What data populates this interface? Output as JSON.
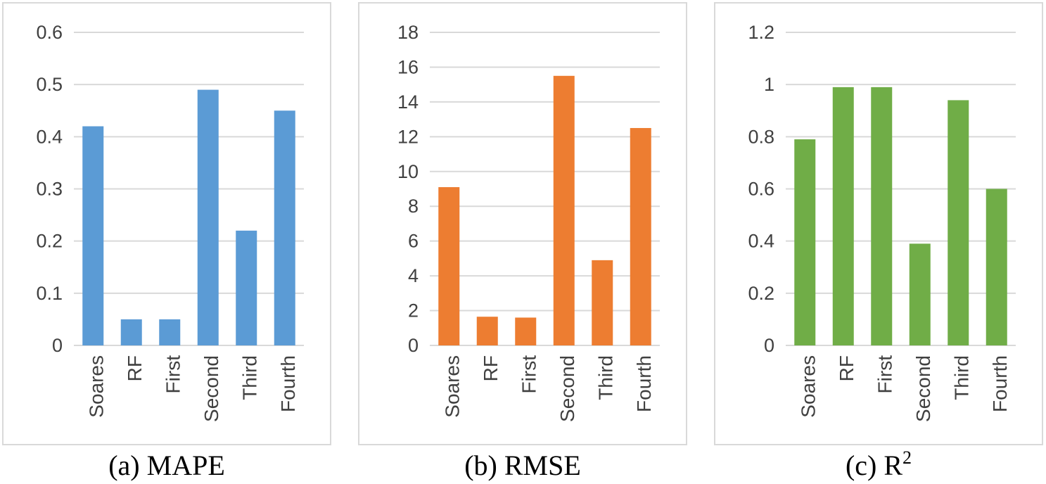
{
  "figure": {
    "background": "#ffffff",
    "panel_border_color": "#d9d9d9",
    "gridline_color": "#d9d9d9",
    "tick_label_color": "#404040",
    "category_label_color": "#404040",
    "caption_color": "#000000"
  },
  "chart_data": [
    {
      "id": "mape",
      "type": "bar",
      "caption": "(a) MAPE",
      "caption_sup": "",
      "categories": [
        "Soares",
        "RF",
        "First",
        "Second",
        "Third",
        "Fourth"
      ],
      "values": [
        0.42,
        0.05,
        0.05,
        0.49,
        0.22,
        0.45
      ],
      "bar_color": "#5B9BD5",
      "ylim": [
        0,
        0.6
      ],
      "ystep": 0.1,
      "yticks": [
        "0",
        "0.1",
        "0.2",
        "0.3",
        "0.4",
        "0.5",
        "0.6"
      ],
      "grid": true,
      "legend": "none"
    },
    {
      "id": "rmse",
      "type": "bar",
      "caption": "(b) RMSE",
      "caption_sup": "",
      "categories": [
        "Soares",
        "RF",
        "First",
        "Second",
        "Third",
        "Fourth"
      ],
      "values": [
        9.1,
        1.65,
        1.6,
        15.5,
        4.9,
        12.5
      ],
      "bar_color": "#ED7D31",
      "ylim": [
        0,
        18
      ],
      "ystep": 2,
      "yticks": [
        "0",
        "2",
        "4",
        "6",
        "8",
        "10",
        "12",
        "14",
        "16",
        "18"
      ],
      "grid": true,
      "legend": "none"
    },
    {
      "id": "r2",
      "type": "bar",
      "caption": "(c) R",
      "caption_sup": "2",
      "categories": [
        "Soares",
        "RF",
        "First",
        "Second",
        "Third",
        "Fourth"
      ],
      "values": [
        0.79,
        0.99,
        0.99,
        0.39,
        0.94,
        0.6
      ],
      "bar_color": "#70AD47",
      "ylim": [
        0,
        1.2
      ],
      "ystep": 0.2,
      "yticks": [
        "0",
        "0.2",
        "0.4",
        "0.6",
        "0.8",
        "1",
        "1.2"
      ],
      "grid": true,
      "legend": "none"
    }
  ]
}
